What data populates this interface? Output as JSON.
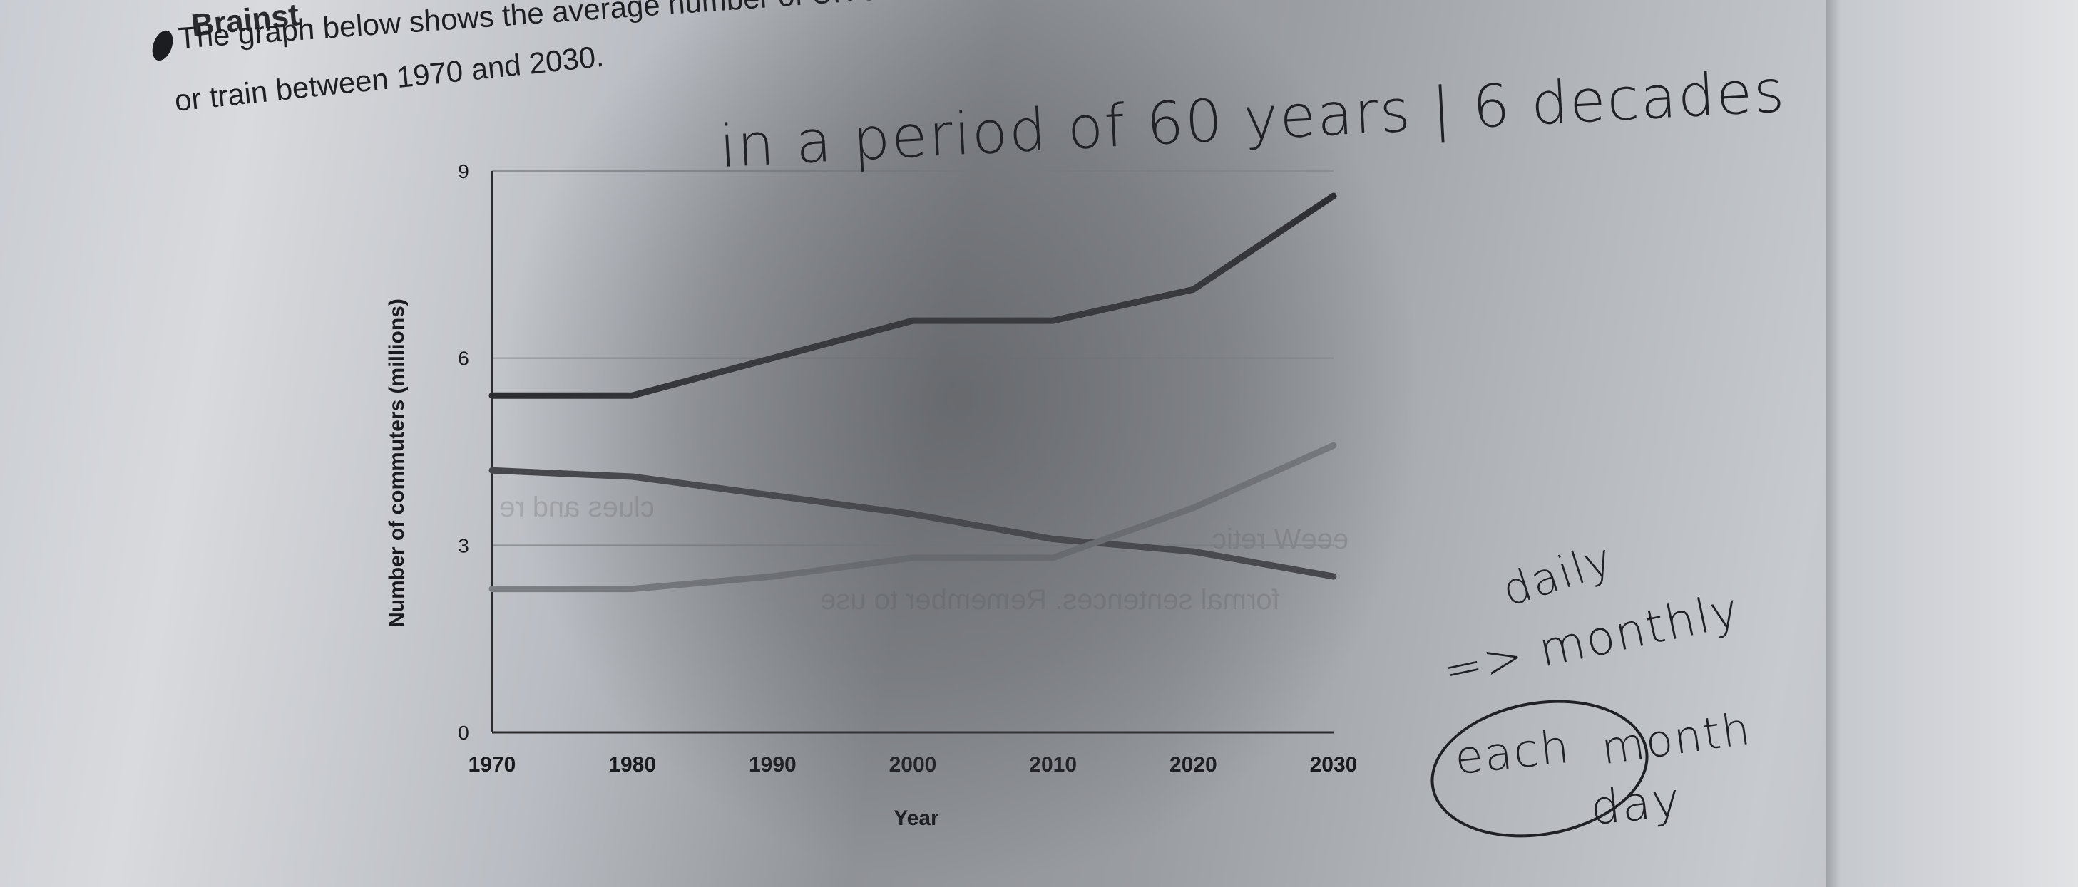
{
  "heading_fragment": "Brainst",
  "task": {
    "line1": "The graph below shows the average number of UK commuters travelling each day by car, bus",
    "line2": "or train between 1970 and 2030."
  },
  "handwriting": {
    "period": "in a period of 60 years | 6 decades",
    "daily": "daily",
    "monthly": "=> monthly",
    "each": "each",
    "month": "month",
    "day": "day"
  },
  "chart_data": {
    "type": "line",
    "xlabel": "Year",
    "ylabel": "Number of commuters (millions)",
    "x": [
      1970,
      1980,
      1990,
      2000,
      2010,
      2020,
      2030
    ],
    "xlim": [
      1970,
      2030
    ],
    "ylim": [
      0,
      9
    ],
    "yticks": [
      "0",
      "3",
      "6",
      "9"
    ],
    "grid": true,
    "series": [
      {
        "values": [
          5.4,
          5.4,
          6.0,
          6.6,
          6.6,
          7.1,
          8.6
        ],
        "color": "#2b2c30"
      },
      {
        "values": [
          4.2,
          4.1,
          3.8,
          3.5,
          3.1,
          2.9,
          2.5
        ],
        "color": "#45474c"
      },
      {
        "values": [
          2.3,
          2.3,
          2.5,
          2.8,
          2.8,
          3.6,
          4.6
        ],
        "color": "#7c7f84"
      }
    ]
  },
  "colors": {
    "paper": "#d8dadd",
    "ink": "#1e1f22",
    "gridline": "#8f9297"
  }
}
